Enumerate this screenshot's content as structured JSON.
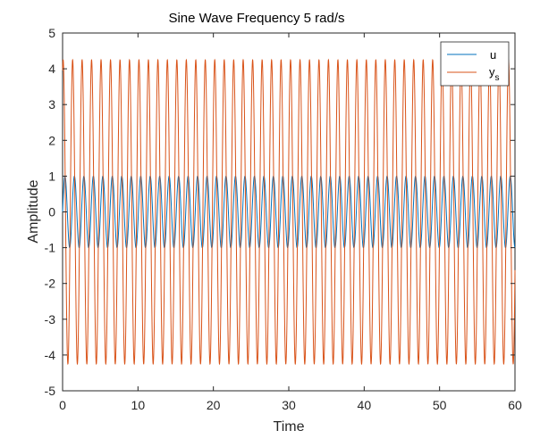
{
  "chart_data": {
    "type": "line",
    "title": "Sine Wave Frequency 5 rad/s",
    "xlabel": "Time",
    "ylabel": "Amplitude",
    "xlim": [
      0,
      60
    ],
    "ylim": [
      -5,
      5
    ],
    "xticks": [
      0,
      10,
      20,
      30,
      40,
      50,
      60
    ],
    "yticks": [
      -5,
      -4,
      -3,
      -2,
      -1,
      0,
      1,
      2,
      3,
      4,
      5
    ],
    "grid": false,
    "legend_position": "top-right",
    "series": [
      {
        "name": "u",
        "color": "#0072BD",
        "function": "sin",
        "amplitude": 1.0,
        "frequency_rad_per_s": 5,
        "phase": 0
      },
      {
        "name": "y",
        "name_subscript": "s",
        "color": "#D95319",
        "function": "sin",
        "amplitude": 4.25,
        "frequency_rad_per_s": 5,
        "phase": 1.2
      }
    ]
  }
}
